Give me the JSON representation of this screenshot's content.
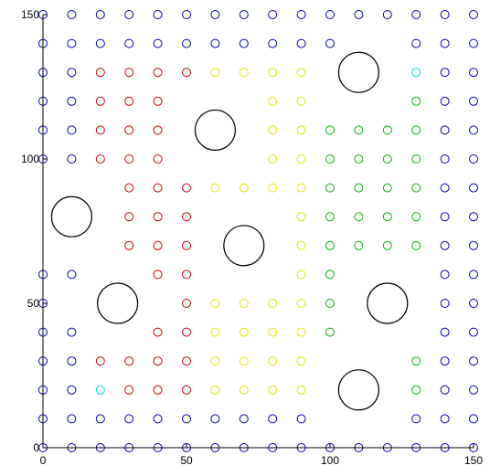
{
  "chart_data": {
    "type": "scatter",
    "title": "",
    "xlabel": "",
    "ylabel": "",
    "xlim": [
      0,
      150
    ],
    "ylim": [
      0,
      150
    ],
    "xticks": [
      0,
      50,
      100,
      150
    ],
    "yticks": [
      0,
      50,
      100,
      150
    ],
    "grid": false,
    "legend": "none",
    "series": [
      {
        "color": "#0000b4",
        "points": [
          [
            0,
            150
          ],
          [
            10,
            150
          ],
          [
            20,
            150
          ],
          [
            30,
            150
          ],
          [
            40,
            150
          ],
          [
            50,
            150
          ],
          [
            60,
            150
          ],
          [
            70,
            150
          ],
          [
            80,
            150
          ],
          [
            90,
            150
          ],
          [
            100,
            150
          ],
          [
            110,
            150
          ],
          [
            120,
            150
          ],
          [
            130,
            150
          ],
          [
            140,
            150
          ],
          [
            150,
            150
          ],
          [
            0,
            140
          ],
          [
            10,
            140
          ],
          [
            20,
            140
          ],
          [
            30,
            140
          ],
          [
            40,
            140
          ],
          [
            50,
            140
          ],
          [
            60,
            140
          ],
          [
            70,
            140
          ],
          [
            80,
            140
          ],
          [
            90,
            140
          ],
          [
            100,
            140
          ],
          [
            130,
            140
          ],
          [
            140,
            140
          ],
          [
            150,
            140
          ],
          [
            0,
            130
          ],
          [
            10,
            130
          ],
          [
            140,
            130
          ],
          [
            150,
            130
          ],
          [
            0,
            120
          ],
          [
            10,
            120
          ],
          [
            140,
            120
          ],
          [
            150,
            120
          ],
          [
            0,
            110
          ],
          [
            10,
            110
          ],
          [
            140,
            110
          ],
          [
            150,
            110
          ],
          [
            0,
            100
          ],
          [
            10,
            100
          ],
          [
            140,
            100
          ],
          [
            150,
            100
          ],
          [
            140,
            90
          ],
          [
            150,
            90
          ],
          [
            140,
            80
          ],
          [
            150,
            80
          ],
          [
            140,
            70
          ],
          [
            150,
            70
          ],
          [
            0,
            60
          ],
          [
            10,
            60
          ],
          [
            140,
            60
          ],
          [
            150,
            60
          ],
          [
            0,
            50
          ],
          [
            140,
            50
          ],
          [
            150,
            50
          ],
          [
            0,
            40
          ],
          [
            10,
            40
          ],
          [
            140,
            40
          ],
          [
            150,
            40
          ],
          [
            0,
            30
          ],
          [
            10,
            30
          ],
          [
            140,
            30
          ],
          [
            150,
            30
          ],
          [
            0,
            20
          ],
          [
            10,
            20
          ],
          [
            140,
            20
          ],
          [
            150,
            20
          ],
          [
            0,
            10
          ],
          [
            10,
            10
          ],
          [
            20,
            10
          ],
          [
            30,
            10
          ],
          [
            40,
            10
          ],
          [
            50,
            10
          ],
          [
            60,
            10
          ],
          [
            70,
            10
          ],
          [
            80,
            10
          ],
          [
            90,
            10
          ],
          [
            130,
            10
          ],
          [
            140,
            10
          ],
          [
            150,
            10
          ],
          [
            0,
            0
          ],
          [
            10,
            0
          ],
          [
            20,
            0
          ],
          [
            30,
            0
          ],
          [
            40,
            0
          ],
          [
            50,
            0
          ],
          [
            60,
            0
          ],
          [
            70,
            0
          ],
          [
            80,
            0
          ],
          [
            90,
            0
          ],
          [
            100,
            0
          ],
          [
            110,
            0
          ],
          [
            120,
            0
          ],
          [
            130,
            0
          ],
          [
            140,
            0
          ],
          [
            150,
            0
          ]
        ]
      },
      {
        "color": "#d00000",
        "points": [
          [
            20,
            130
          ],
          [
            30,
            130
          ],
          [
            40,
            130
          ],
          [
            50,
            130
          ],
          [
            20,
            120
          ],
          [
            30,
            120
          ],
          [
            40,
            120
          ],
          [
            20,
            110
          ],
          [
            30,
            110
          ],
          [
            40,
            110
          ],
          [
            20,
            100
          ],
          [
            30,
            100
          ],
          [
            40,
            100
          ],
          [
            30,
            90
          ],
          [
            40,
            90
          ],
          [
            50,
            90
          ],
          [
            30,
            80
          ],
          [
            40,
            80
          ],
          [
            50,
            80
          ],
          [
            30,
            70
          ],
          [
            40,
            70
          ],
          [
            50,
            70
          ],
          [
            40,
            60
          ],
          [
            50,
            60
          ],
          [
            50,
            50
          ],
          [
            40,
            40
          ],
          [
            50,
            40
          ],
          [
            20,
            30
          ],
          [
            30,
            30
          ],
          [
            40,
            30
          ],
          [
            50,
            30
          ],
          [
            30,
            20
          ],
          [
            40,
            20
          ],
          [
            50,
            20
          ]
        ]
      },
      {
        "color": "#e6e600",
        "points": [
          [
            60,
            130
          ],
          [
            70,
            130
          ],
          [
            80,
            130
          ],
          [
            90,
            130
          ],
          [
            80,
            120
          ],
          [
            90,
            120
          ],
          [
            80,
            110
          ],
          [
            90,
            110
          ],
          [
            80,
            100
          ],
          [
            90,
            100
          ],
          [
            60,
            90
          ],
          [
            70,
            90
          ],
          [
            80,
            90
          ],
          [
            90,
            90
          ],
          [
            90,
            80
          ],
          [
            90,
            70
          ],
          [
            90,
            60
          ],
          [
            60,
            50
          ],
          [
            70,
            50
          ],
          [
            80,
            50
          ],
          [
            90,
            50
          ],
          [
            60,
            40
          ],
          [
            70,
            40
          ],
          [
            80,
            40
          ],
          [
            90,
            40
          ],
          [
            60,
            30
          ],
          [
            70,
            30
          ],
          [
            80,
            30
          ],
          [
            90,
            30
          ],
          [
            60,
            20
          ],
          [
            70,
            20
          ],
          [
            80,
            20
          ],
          [
            90,
            20
          ]
        ]
      },
      {
        "color": "#00b400",
        "points": [
          [
            130,
            120
          ],
          [
            100,
            110
          ],
          [
            110,
            110
          ],
          [
            120,
            110
          ],
          [
            130,
            110
          ],
          [
            100,
            100
          ],
          [
            110,
            100
          ],
          [
            120,
            100
          ],
          [
            130,
            100
          ],
          [
            100,
            90
          ],
          [
            110,
            90
          ],
          [
            120,
            90
          ],
          [
            130,
            90
          ],
          [
            100,
            80
          ],
          [
            110,
            80
          ],
          [
            120,
            80
          ],
          [
            130,
            80
          ],
          [
            100,
            70
          ],
          [
            110,
            70
          ],
          [
            120,
            70
          ],
          [
            130,
            70
          ],
          [
            100,
            60
          ],
          [
            100,
            50
          ],
          [
            100,
            40
          ],
          [
            130,
            30
          ],
          [
            130,
            20
          ]
        ]
      },
      {
        "color": "#00d8d8",
        "points": [
          [
            130,
            130
          ],
          [
            20,
            20
          ]
        ]
      }
    ],
    "obstacles": [
      {
        "x": 110,
        "y": 130,
        "r": 7
      },
      {
        "x": 60,
        "y": 110,
        "r": 7
      },
      {
        "x": 10,
        "y": 80,
        "r": 7
      },
      {
        "x": 70,
        "y": 70,
        "r": 7
      },
      {
        "x": 26,
        "y": 50,
        "r": 7
      },
      {
        "x": 120,
        "y": 50,
        "r": 7
      },
      {
        "x": 110,
        "y": 20,
        "r": 7
      }
    ]
  }
}
